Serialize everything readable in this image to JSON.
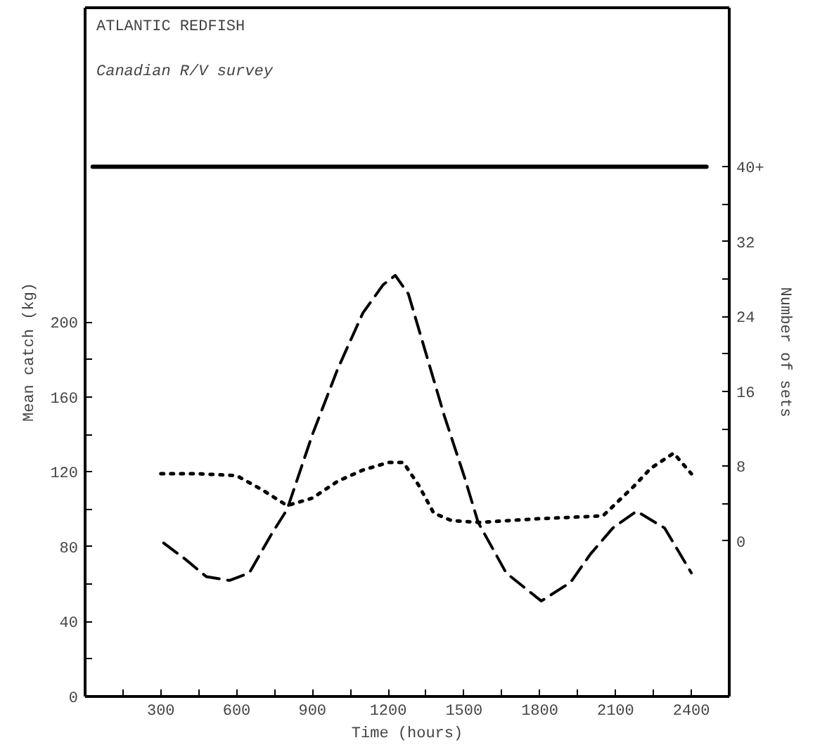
{
  "chart_data": {
    "type": "line",
    "title": "ATLANTIC REDFISH",
    "subtitle": "Canadian R/V survey",
    "xlabel": "Time (hours)",
    "ylabel": "Mean catch (kg)",
    "y2label": "Number of sets",
    "xlim": [
      0,
      2550
    ],
    "xticks": [
      {
        "value": 150,
        "label": null
      },
      300,
      {
        "value": 450,
        "label": null
      },
      600,
      {
        "value": 750,
        "label": null
      },
      900,
      {
        "value": 1050,
        "label": null
      },
      1200,
      {
        "value": 1350,
        "label": null
      },
      1500,
      {
        "value": 1650,
        "label": null
      },
      1800,
      {
        "value": 1950,
        "label": null
      },
      2100,
      {
        "value": 2250,
        "label": null
      },
      2400
    ],
    "ylim": [
      0,
      368
    ],
    "yticks": [
      0,
      {
        "value": 20,
        "label": null
      },
      40,
      {
        "value": 60,
        "label": null
      },
      80,
      {
        "value": 100,
        "label": null
      },
      120,
      {
        "value": 140,
        "label": null
      },
      160,
      {
        "value": 180,
        "label": null
      },
      200
    ],
    "y2lim": [
      -16.6,
      57
    ],
    "y2ticks": [
      0,
      {
        "value": 4,
        "label": null
      },
      8,
      {
        "value": 12,
        "label": null
      },
      16,
      {
        "value": 20,
        "label": null
      },
      24,
      {
        "value": 28,
        "label": null
      },
      32,
      {
        "value": 36,
        "label": null
      },
      {
        "value": 40,
        "label": "40+"
      }
    ],
    "grid": false,
    "series": [
      {
        "color": "#000000",
        "line_style": "dashed",
        "x": [
          311,
          400,
          480,
          572,
          650,
          739,
          800,
          900,
          1000,
          1100,
          1180,
          1228,
          1280,
          1350,
          1422,
          1500,
          1556,
          1667,
          1806,
          1922,
          2000,
          2089,
          2183,
          2294,
          2400
        ],
        "values": [
          82,
          73,
          64,
          62,
          66,
          87,
          100,
          140,
          175,
          205,
          220,
          225,
          215,
          183,
          150,
          118,
          93,
          66,
          51,
          61,
          76,
          90,
          99,
          90,
          66
        ]
      },
      {
        "color": "#000000",
        "line_style": "dotted",
        "axis": "y2",
        "x": [
          300,
          450,
          600,
          700,
          800,
          900,
          1000,
          1100,
          1200,
          1260,
          1320,
          1380,
          1450,
          1560,
          1800,
          2050,
          2170,
          2240,
          2330,
          2400
        ],
        "values": [
          7.2,
          7.2,
          7.0,
          5.5,
          3.8,
          4.6,
          6.4,
          7.6,
          8.4,
          8.4,
          6,
          3,
          2.2,
          2,
          2.4,
          2.7,
          5.8,
          7.8,
          9.4,
          7.2
        ]
      },
      {
        "color": "#000000",
        "line_style": "solid",
        "axis": "y2",
        "x": [
          30,
          2460
        ],
        "values": [
          40,
          40
        ]
      }
    ]
  }
}
